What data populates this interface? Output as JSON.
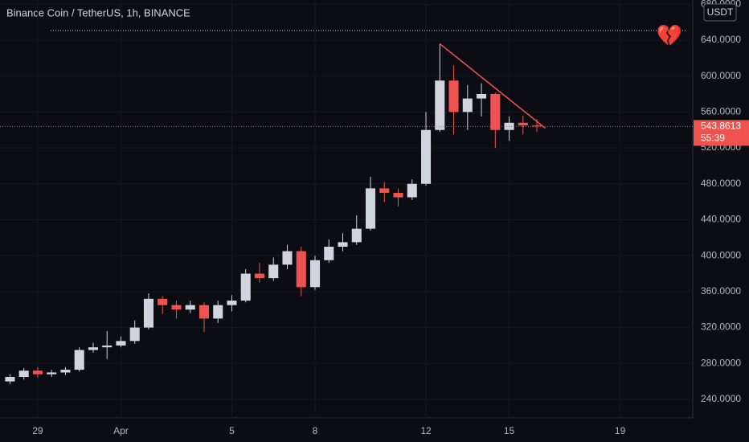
{
  "chart_data": {
    "type": "candlestick",
    "title": "Binance Coin / TetherUS, 1h, BINANCE",
    "currency": "USDT",
    "x": [
      -1.0,
      -0.5,
      0,
      0.5,
      1.0,
      1.5,
      2.0,
      2.5,
      3.0,
      3.5,
      4.0,
      4.5,
      5.0,
      5.5,
      6.0,
      6.5,
      7.0,
      7.5,
      8.0,
      8.5,
      9.0,
      9.5,
      10.0,
      10.5,
      11.0,
      11.5,
      12.0,
      12.5,
      13.0,
      13.5,
      14.0,
      14.5,
      15.0,
      15.5,
      16.0,
      16.5,
      17.0,
      17.5,
      18.0
    ],
    "open": [
      260,
      265,
      272,
      268,
      270,
      273,
      295,
      298,
      300,
      305,
      320,
      352,
      345,
      340,
      345,
      330,
      345,
      350,
      380,
      375,
      390,
      405,
      365,
      395,
      410,
      415,
      430,
      475,
      470,
      465,
      480,
      540,
      595,
      560,
      575,
      580,
      540,
      548,
      545
    ],
    "high": [
      268,
      275,
      276,
      273,
      276,
      298,
      303,
      316,
      310,
      328,
      358,
      355,
      350,
      350,
      348,
      350,
      356,
      385,
      392,
      398,
      412,
      410,
      400,
      418,
      425,
      445,
      488,
      482,
      475,
      485,
      560,
      636,
      612,
      590,
      592,
      582,
      555,
      556,
      552
    ],
    "low": [
      257,
      262,
      264,
      265,
      267,
      271,
      292,
      285,
      298,
      302,
      318,
      335,
      330,
      336,
      315,
      325,
      338,
      348,
      370,
      372,
      385,
      355,
      362,
      392,
      405,
      412,
      428,
      460,
      455,
      462,
      478,
      538,
      535,
      540,
      555,
      520,
      528,
      535,
      538
    ],
    "close": [
      265,
      272,
      268,
      270,
      273,
      295,
      298,
      300,
      305,
      320,
      352,
      345,
      340,
      345,
      330,
      345,
      350,
      380,
      375,
      390,
      405,
      365,
      395,
      410,
      415,
      430,
      475,
      470,
      465,
      480,
      540,
      595,
      560,
      575,
      580,
      540,
      548,
      545,
      544
    ],
    "up_color": "#d1d4dc",
    "down_color": "#ef5350",
    "xlim": [
      -1.36,
      23.62
    ],
    "xticks": [
      {
        "value": 0,
        "label": "29"
      },
      {
        "value": 3,
        "label": "Apr"
      },
      {
        "value": 7,
        "label": "5"
      },
      {
        "value": 10,
        "label": "8"
      },
      {
        "value": 14,
        "label": "12"
      },
      {
        "value": 17,
        "label": "15"
      },
      {
        "value": 21,
        "label": "19"
      }
    ],
    "ylim": [
      219.4,
      684.7
    ],
    "yticks": [
      {
        "value": 240,
        "label": "240.0000"
      },
      {
        "value": 280,
        "label": "280.0000"
      },
      {
        "value": 320,
        "label": "320.0000"
      },
      {
        "value": 360,
        "label": "360.0000"
      },
      {
        "value": 400,
        "label": "400.0000"
      },
      {
        "value": 440,
        "label": "440.0000"
      },
      {
        "value": 480,
        "label": "480.0000"
      },
      {
        "value": 520,
        "label": "520.0000"
      },
      {
        "value": 560,
        "label": "560.0000"
      },
      {
        "value": 600,
        "label": "600.0000"
      },
      {
        "value": 640,
        "label": "640.0000"
      },
      {
        "value": 680,
        "label": "680.0000"
      }
    ],
    "last_price": {
      "value": 543.8613,
      "label": "543.8613"
    },
    "countdown": "55:39",
    "level": 650.7,
    "annotation": "💔",
    "trendline": {
      "color": "#ef5350",
      "x": [
        14.5,
        18.3
      ],
      "y": [
        636,
        542
      ]
    }
  }
}
